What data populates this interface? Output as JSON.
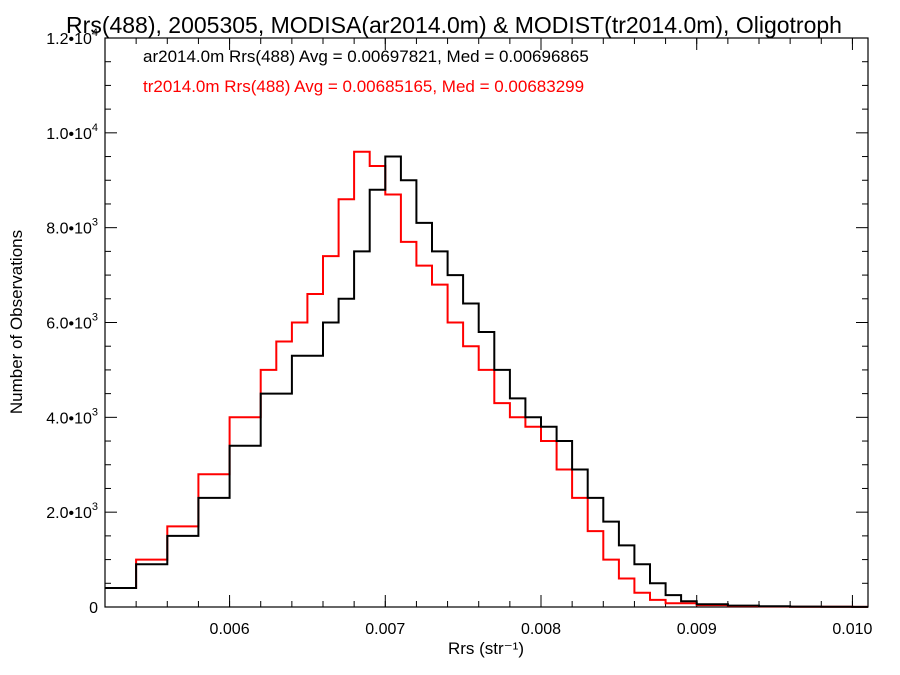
{
  "chart_data": {
    "type": "line",
    "title": "Rrs(488), 2005305, MODISA(ar2014.0m) & MODIST(tr2014.0m), Oligotroph",
    "xlabel": "Rrs (str⁻¹)",
    "ylabel": "Number of Observations",
    "xlim": [
      0.0052,
      0.0101
    ],
    "ylim": [
      0,
      12000
    ],
    "xticks": [
      0.006,
      0.007,
      0.008,
      0.009,
      0.01
    ],
    "xtick_labels": [
      "0.006",
      "0.007",
      "0.008",
      "0.009",
      "0.010"
    ],
    "yticks": [
      {
        "value": 0,
        "mant": "0",
        "exp": ""
      },
      {
        "value": 2000,
        "mant": "2.0•10",
        "exp": "3"
      },
      {
        "value": 4000,
        "mant": "4.0•10",
        "exp": "3"
      },
      {
        "value": 6000,
        "mant": "6.0•10",
        "exp": "3"
      },
      {
        "value": 8000,
        "mant": "8.0•10",
        "exp": "3"
      },
      {
        "value": 10000,
        "mant": "1.0•10",
        "exp": "4"
      },
      {
        "value": 12000,
        "mant": "1.2•10",
        "exp": "4"
      }
    ],
    "grid": false,
    "legend_position": "top-left",
    "series": [
      {
        "name": "ar2014.0m Rrs(488) Avg = 0.00697821, Med = 0.00696865",
        "color": "#000000",
        "x": [
          0.0052,
          0.0054,
          0.0056,
          0.0058,
          0.006,
          0.0062,
          0.0064,
          0.0066,
          0.0067,
          0.0068,
          0.0069,
          0.007,
          0.0071,
          0.0072,
          0.0073,
          0.0074,
          0.0075,
          0.0076,
          0.0077,
          0.0078,
          0.0079,
          0.008,
          0.0081,
          0.0082,
          0.0083,
          0.0084,
          0.0085,
          0.0086,
          0.0087,
          0.0088,
          0.0089,
          0.009,
          0.0092,
          0.0094,
          0.0096,
          0.0098,
          0.01,
          0.0101
        ],
        "y": [
          400,
          900,
          1500,
          2300,
          3400,
          4500,
          5300,
          6000,
          6500,
          7500,
          8800,
          9500,
          9000,
          8100,
          7500,
          7000,
          6400,
          5800,
          5000,
          4400,
          4000,
          3800,
          3500,
          2900,
          2300,
          1800,
          1300,
          900,
          500,
          250,
          120,
          60,
          30,
          15,
          8,
          5,
          3,
          2
        ]
      },
      {
        "name": "tr2014.0m Rrs(488) Avg = 0.00685165, Med = 0.00683299",
        "color": "#ff0000",
        "x": [
          0.0052,
          0.0054,
          0.0056,
          0.0058,
          0.006,
          0.0062,
          0.0063,
          0.0064,
          0.0065,
          0.0066,
          0.0067,
          0.0068,
          0.0069,
          0.007,
          0.0071,
          0.0072,
          0.0073,
          0.0074,
          0.0075,
          0.0076,
          0.0077,
          0.0078,
          0.0079,
          0.008,
          0.0081,
          0.0082,
          0.0083,
          0.0084,
          0.0085,
          0.0086,
          0.0087,
          0.0088,
          0.009,
          0.0092,
          0.0094,
          0.0096,
          0.0098,
          0.01,
          0.0101
        ],
        "y": [
          400,
          1000,
          1700,
          2800,
          4000,
          5000,
          5600,
          6000,
          6600,
          7400,
          8600,
          9600,
          9300,
          8700,
          7700,
          7200,
          6800,
          6000,
          5500,
          5000,
          4300,
          4000,
          3800,
          3500,
          2900,
          2300,
          1600,
          1000,
          600,
          300,
          150,
          80,
          40,
          20,
          10,
          6,
          4,
          3,
          2
        ]
      }
    ]
  }
}
